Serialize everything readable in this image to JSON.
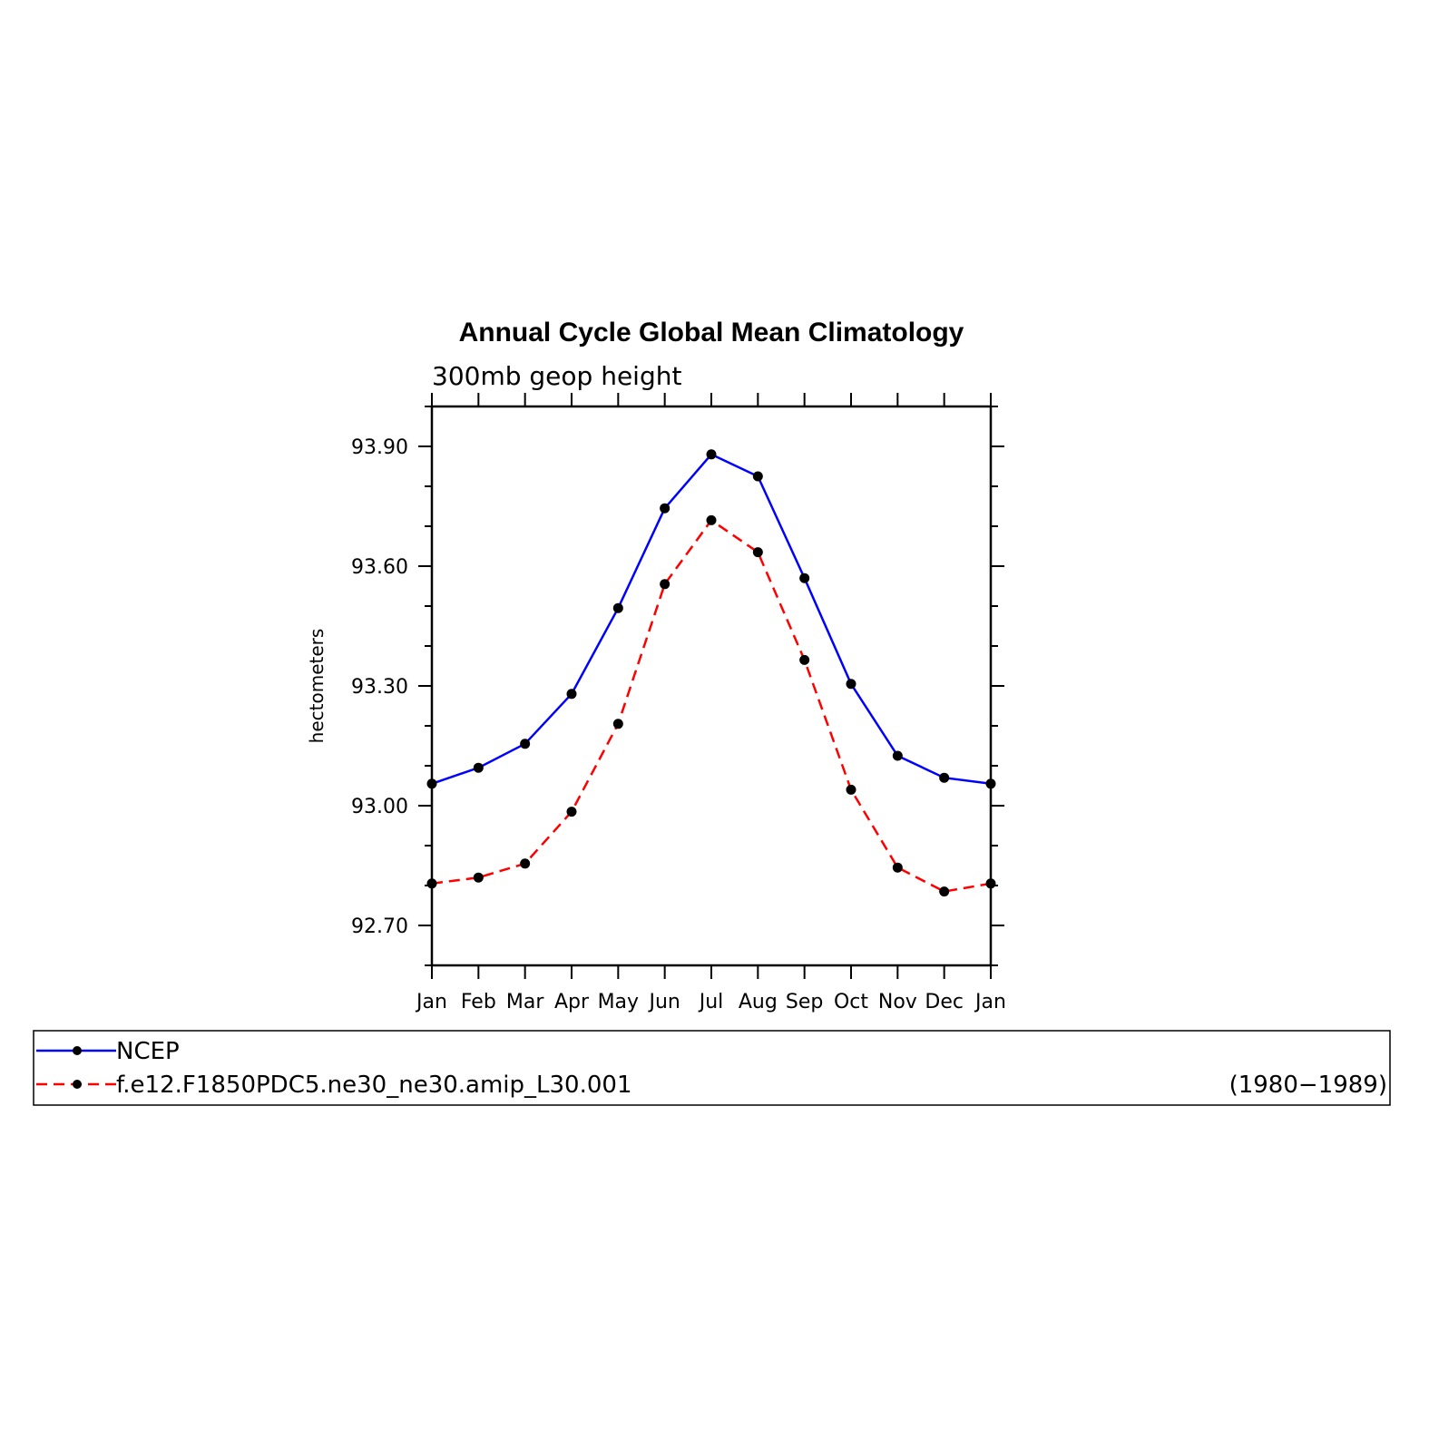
{
  "chart_data": {
    "type": "line",
    "title": "Annual Cycle Global Mean Climatology",
    "subtitle": "300mb geop height",
    "xlabel": "",
    "ylabel": "hectometers",
    "categories": [
      "Jan",
      "Feb",
      "Mar",
      "Apr",
      "May",
      "Jun",
      "Jul",
      "Aug",
      "Sep",
      "Oct",
      "Nov",
      "Dec",
      "Jan"
    ],
    "ylim": [
      92.6,
      94.0
    ],
    "yticks": [
      "93.90",
      "93.60",
      "93.30",
      "93.00",
      "92.70"
    ],
    "series": [
      {
        "name": "NCEP",
        "color": "#0000ff",
        "dash": "solid",
        "values": [
          93.055,
          93.095,
          93.155,
          93.28,
          93.495,
          93.745,
          93.88,
          93.825,
          93.57,
          93.305,
          93.125,
          93.07,
          93.055
        ]
      },
      {
        "name": "f.e12.F1850PDC5.ne30_ne30.amip_L30.001",
        "color": "#ff0000",
        "dash": "dashed",
        "values": [
          92.805,
          92.82,
          92.855,
          92.985,
          93.205,
          93.555,
          93.715,
          93.635,
          93.365,
          93.04,
          92.845,
          92.785,
          92.805
        ]
      }
    ],
    "legend": {
      "placement": "bottom",
      "period": "(1980−1989)"
    },
    "grid": false
  }
}
